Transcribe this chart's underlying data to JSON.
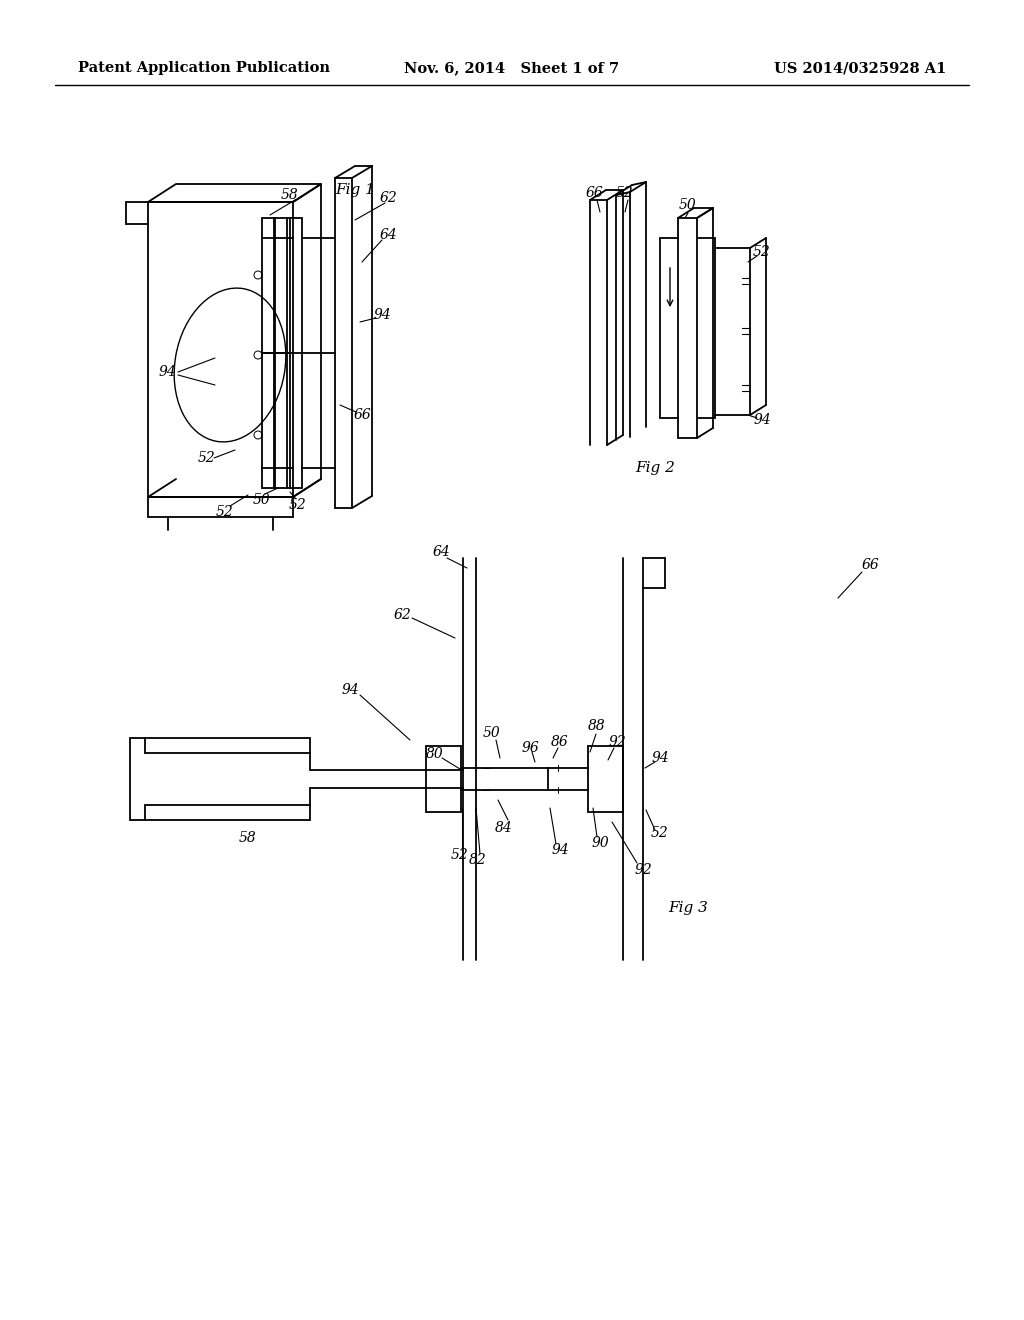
{
  "background_color": "#ffffff",
  "header_left": "Patent Application Publication",
  "header_center": "Nov. 6, 2014   Sheet 1 of 7",
  "header_right": "US 2014/0325928 A1",
  "header_fontsize": 10.5,
  "header_fontweight": "bold",
  "line_color": "#000000",
  "text_color": "#000000",
  "lw_main": 1.3,
  "lw_thin": 0.8
}
